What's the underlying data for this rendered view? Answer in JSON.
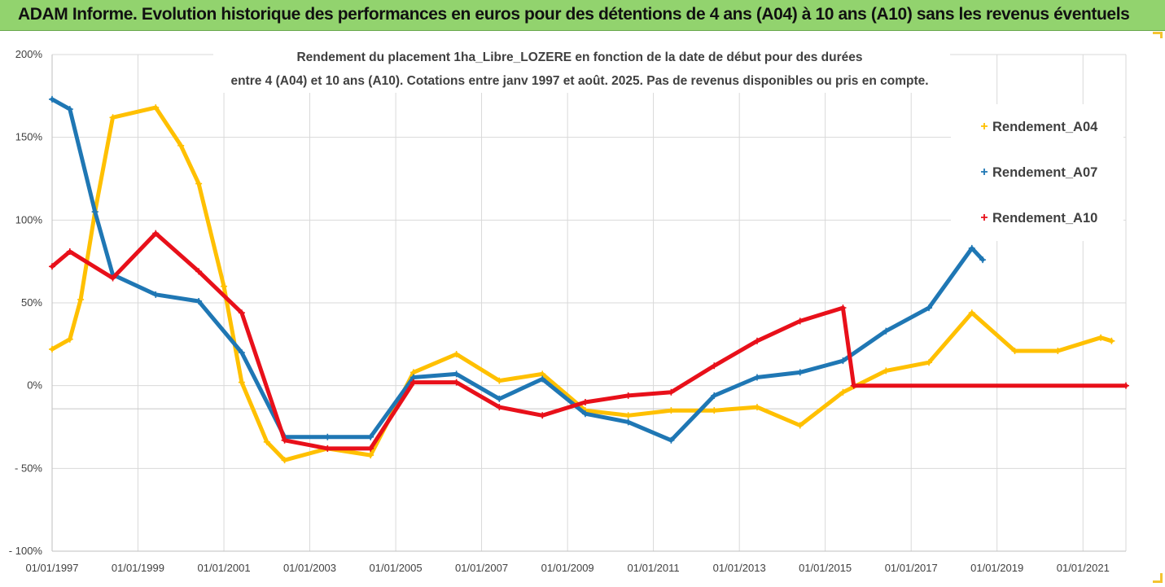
{
  "banner": {
    "title": "ADAM Informe. Evolution historique des performances en euros pour des détentions de 4 ans (A04) à 10 ans (A10) sans les revenus éventuels"
  },
  "colors": {
    "banner_bg": "#92d36e",
    "grid": "#d9d9d9",
    "A04": "#ffc000",
    "A07": "#1f77b4",
    "A10": "#e8101a",
    "corner_accent": "#f4c430"
  },
  "chart_data": {
    "type": "line",
    "title_lines": [
      "Rendement du placement 1ha_Libre_LOZERE en fonction de la date de début pour des durées",
      "entre 4 (A04) et 10 ans (A10). Cotations entre janv 1997 et août. 2025. Pas de revenus disponibles ou pris en compte."
    ],
    "xlabel": "",
    "ylabel": "",
    "x_axis": {
      "type": "date",
      "range": [
        "1997-01-01",
        "2022-01-01"
      ],
      "tick_labels": [
        "01/01/1997",
        "01/01/1999",
        "01/01/2001",
        "01/01/2003",
        "01/01/2005",
        "01/01/2007",
        "01/01/2009",
        "01/01/2011",
        "01/01/2013",
        "01/01/2015",
        "01/01/2017",
        "01/01/2019",
        "01/01/2021"
      ]
    },
    "y_axis": {
      "range": [
        -1.0,
        2.0
      ],
      "ticks": [
        -1.0,
        -0.5,
        0,
        0.5,
        1.0,
        1.5,
        2.0
      ],
      "tick_labels": [
        "- 100%",
        "- 50%",
        "0%",
        "50%",
        "100%",
        "150%",
        "200%"
      ]
    },
    "grid": true,
    "legend_position": "top-right",
    "series": [
      {
        "name": "Rendement_A04",
        "color_key": "A04",
        "marker": "+",
        "points": [
          [
            "1997-01-01",
            0.22
          ],
          [
            "1997-06-01",
            0.28
          ],
          [
            "1997-09-01",
            0.52
          ],
          [
            "1998-01-01",
            1.05
          ],
          [
            "1998-06-01",
            1.62
          ],
          [
            "1999-06-01",
            1.68
          ],
          [
            "2000-01-01",
            1.45
          ],
          [
            "2000-06-01",
            1.22
          ],
          [
            "2001-01-01",
            0.6
          ],
          [
            "2001-06-01",
            0.02
          ],
          [
            "2002-01-01",
            -0.34
          ],
          [
            "2002-06-01",
            -0.45
          ],
          [
            "2003-06-01",
            -0.38
          ],
          [
            "2004-06-01",
            -0.42
          ],
          [
            "2005-06-01",
            0.08
          ],
          [
            "2006-06-01",
            0.19
          ],
          [
            "2007-06-01",
            0.03
          ],
          [
            "2008-06-01",
            0.07
          ],
          [
            "2009-06-01",
            -0.15
          ],
          [
            "2010-06-01",
            -0.18
          ],
          [
            "2011-06-01",
            -0.15
          ],
          [
            "2012-06-01",
            -0.15
          ],
          [
            "2013-06-01",
            -0.13
          ],
          [
            "2014-06-01",
            -0.24
          ],
          [
            "2015-06-01",
            -0.04
          ],
          [
            "2016-06-01",
            0.09
          ],
          [
            "2017-06-01",
            0.14
          ],
          [
            "2018-06-01",
            0.44
          ],
          [
            "2019-06-01",
            0.21
          ],
          [
            "2020-06-01",
            0.21
          ],
          [
            "2021-06-01",
            0.29
          ],
          [
            "2021-09-01",
            0.27
          ]
        ]
      },
      {
        "name": "Rendement_A07",
        "color_key": "A07",
        "marker": "+",
        "points": [
          [
            "1997-01-01",
            1.73
          ],
          [
            "1997-06-01",
            1.67
          ],
          [
            "1998-01-01",
            1.05
          ],
          [
            "1998-06-01",
            0.67
          ],
          [
            "1999-06-01",
            0.55
          ],
          [
            "2000-06-01",
            0.51
          ],
          [
            "2001-06-01",
            0.2
          ],
          [
            "2002-06-01",
            -0.31
          ],
          [
            "2003-06-01",
            -0.31
          ],
          [
            "2004-06-01",
            -0.31
          ],
          [
            "2005-06-01",
            0.05
          ],
          [
            "2006-06-01",
            0.07
          ],
          [
            "2007-06-01",
            -0.08
          ],
          [
            "2008-06-01",
            0.04
          ],
          [
            "2009-06-01",
            -0.17
          ],
          [
            "2010-06-01",
            -0.22
          ],
          [
            "2011-06-01",
            -0.33
          ],
          [
            "2012-06-01",
            -0.06
          ],
          [
            "2013-06-01",
            0.05
          ],
          [
            "2014-06-01",
            0.08
          ],
          [
            "2015-06-01",
            0.15
          ],
          [
            "2016-06-01",
            0.33
          ],
          [
            "2017-06-01",
            0.47
          ],
          [
            "2018-06-01",
            0.83
          ],
          [
            "2018-09-01",
            0.76
          ]
        ]
      },
      {
        "name": "Rendement_A10",
        "color_key": "A10",
        "marker": "+",
        "points": [
          [
            "1997-01-01",
            0.72
          ],
          [
            "1997-06-01",
            0.81
          ],
          [
            "1998-06-01",
            0.65
          ],
          [
            "1999-06-01",
            0.92
          ],
          [
            "2000-06-01",
            0.69
          ],
          [
            "2001-06-01",
            0.44
          ],
          [
            "2002-06-01",
            -0.33
          ],
          [
            "2003-06-01",
            -0.38
          ],
          [
            "2004-06-01",
            -0.38
          ],
          [
            "2005-06-01",
            0.02
          ],
          [
            "2006-06-01",
            0.02
          ],
          [
            "2007-06-01",
            -0.13
          ],
          [
            "2008-06-01",
            -0.18
          ],
          [
            "2009-06-01",
            -0.1
          ],
          [
            "2010-06-01",
            -0.06
          ],
          [
            "2011-06-01",
            -0.04
          ],
          [
            "2012-06-01",
            0.12
          ],
          [
            "2013-06-01",
            0.27
          ],
          [
            "2014-06-01",
            0.39
          ],
          [
            "2015-06-01",
            0.47
          ],
          [
            "2015-09-01",
            0.0
          ],
          [
            "2022-01-01",
            0.0
          ]
        ]
      }
    ]
  }
}
